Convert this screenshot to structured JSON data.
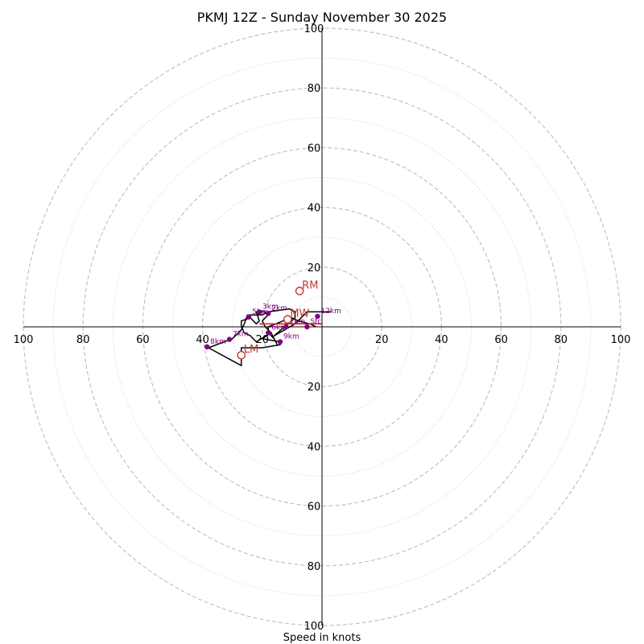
{
  "chart_data": {
    "type": "scatter",
    "title": "PKMJ 12Z - Sunday November 30 2025",
    "xlabel": "Speed in knots",
    "ylabel": "",
    "xlim": [
      -100,
      100
    ],
    "ylim": [
      -100,
      100
    ],
    "tick_labels": [
      "20",
      "40",
      "60",
      "80",
      "100"
    ],
    "major_rings": [
      20,
      40,
      60,
      80,
      100
    ],
    "minor_rings": [
      10,
      30,
      50,
      70,
      90
    ],
    "hodograph": [
      {
        "x": -2,
        "y": 0
      },
      {
        "x": -4,
        "y": 1
      },
      {
        "x": -8,
        "y": 2
      },
      {
        "x": -10,
        "y": 3
      },
      {
        "x": -13,
        "y": 2
      },
      {
        "x": -18,
        "y": 0
      },
      {
        "x": -18,
        "y": -2
      },
      {
        "x": -16,
        "y": -4
      },
      {
        "x": -15,
        "y": -6
      },
      {
        "x": -17,
        "y": -2
      },
      {
        "x": -19,
        "y": 0
      },
      {
        "x": -20,
        "y": 2
      },
      {
        "x": -18,
        "y": 4
      },
      {
        "x": -19,
        "y": 5
      },
      {
        "x": -22,
        "y": 5
      },
      {
        "x": -21,
        "y": 2
      },
      {
        "x": -22,
        "y": 1
      },
      {
        "x": -24,
        "y": 3
      },
      {
        "x": -27,
        "y": 2
      },
      {
        "x": -27,
        "y": 0
      },
      {
        "x": -26,
        "y": -2
      },
      {
        "x": -24,
        "y": -3
      },
      {
        "x": -22,
        "y": -5
      },
      {
        "x": -17,
        "y": -2
      },
      {
        "x": -20,
        "y": -4
      },
      {
        "x": -14,
        "y": -5
      },
      {
        "x": -14,
        "y": -6
      },
      {
        "x": -20,
        "y": -7
      },
      {
        "x": -27,
        "y": -7
      },
      {
        "x": -27,
        "y": -13
      },
      {
        "x": -38,
        "y": -7
      },
      {
        "x": -30,
        "y": -4
      },
      {
        "x": -27,
        "y": -1
      },
      {
        "x": -26,
        "y": 1
      },
      {
        "x": -25,
        "y": 4
      },
      {
        "x": -20,
        "y": 4
      },
      {
        "x": -18,
        "y": 5
      },
      {
        "x": -11,
        "y": 6
      },
      {
        "x": -9,
        "y": 5
      },
      {
        "x": -9,
        "y": 3
      },
      {
        "x": -16,
        "y": -3
      },
      {
        "x": -9,
        "y": 1
      },
      {
        "x": -5,
        "y": 5
      },
      {
        "x": -4,
        "y": 5
      },
      {
        "x": 3,
        "y": 5
      }
    ],
    "layer_points": [
      {
        "label": "Sfc",
        "x": -5,
        "y": 0
      },
      {
        "label": "1km",
        "x": -12,
        "y": 0
      },
      {
        "label": "2km",
        "x": -18,
        "y": 4.5
      },
      {
        "label": "3km",
        "x": -21,
        "y": 5
      },
      {
        "label": "5km",
        "x": -24.5,
        "y": 3.3
      },
      {
        "label": "6km",
        "x": -18,
        "y": -2
      },
      {
        "label": "7km",
        "x": -31,
        "y": -4.2
      },
      {
        "label": "8km",
        "x": -38.5,
        "y": -6.7
      },
      {
        "label": "9km",
        "x": -14,
        "y": -5
      },
      {
        "label": "12km",
        "x": -1.5,
        "y": 3.5
      }
    ],
    "layer_labels": {
      "sfc": "Sfc",
      "km1": "1km",
      "km2": "2km",
      "km3": "3km",
      "km5": "5km",
      "km6": "6km",
      "km7": "7km",
      "km8": "8km",
      "km9": "9km",
      "km12": "12km"
    },
    "storm_motion": [
      {
        "label": "RM",
        "x": -7.5,
        "y": 12
      },
      {
        "label": "LM",
        "x": -27,
        "y": -9.5
      },
      {
        "label": "MW",
        "x": -11.5,
        "y": 2.5
      }
    ],
    "motion_labels": {
      "rm": "RM",
      "lm": "LM",
      "mw": "MW"
    },
    "shear_vector": {
      "from": {
        "x": -21,
        "y": 1
      },
      "to": {
        "x": 0,
        "y": 1
      }
    },
    "grid": true
  },
  "colors": {
    "hodograph": "#000000",
    "layer_marker": "#800080",
    "storm_motion": "#c0392b",
    "shear": "#e02020",
    "grid": "#bdbdbd"
  }
}
